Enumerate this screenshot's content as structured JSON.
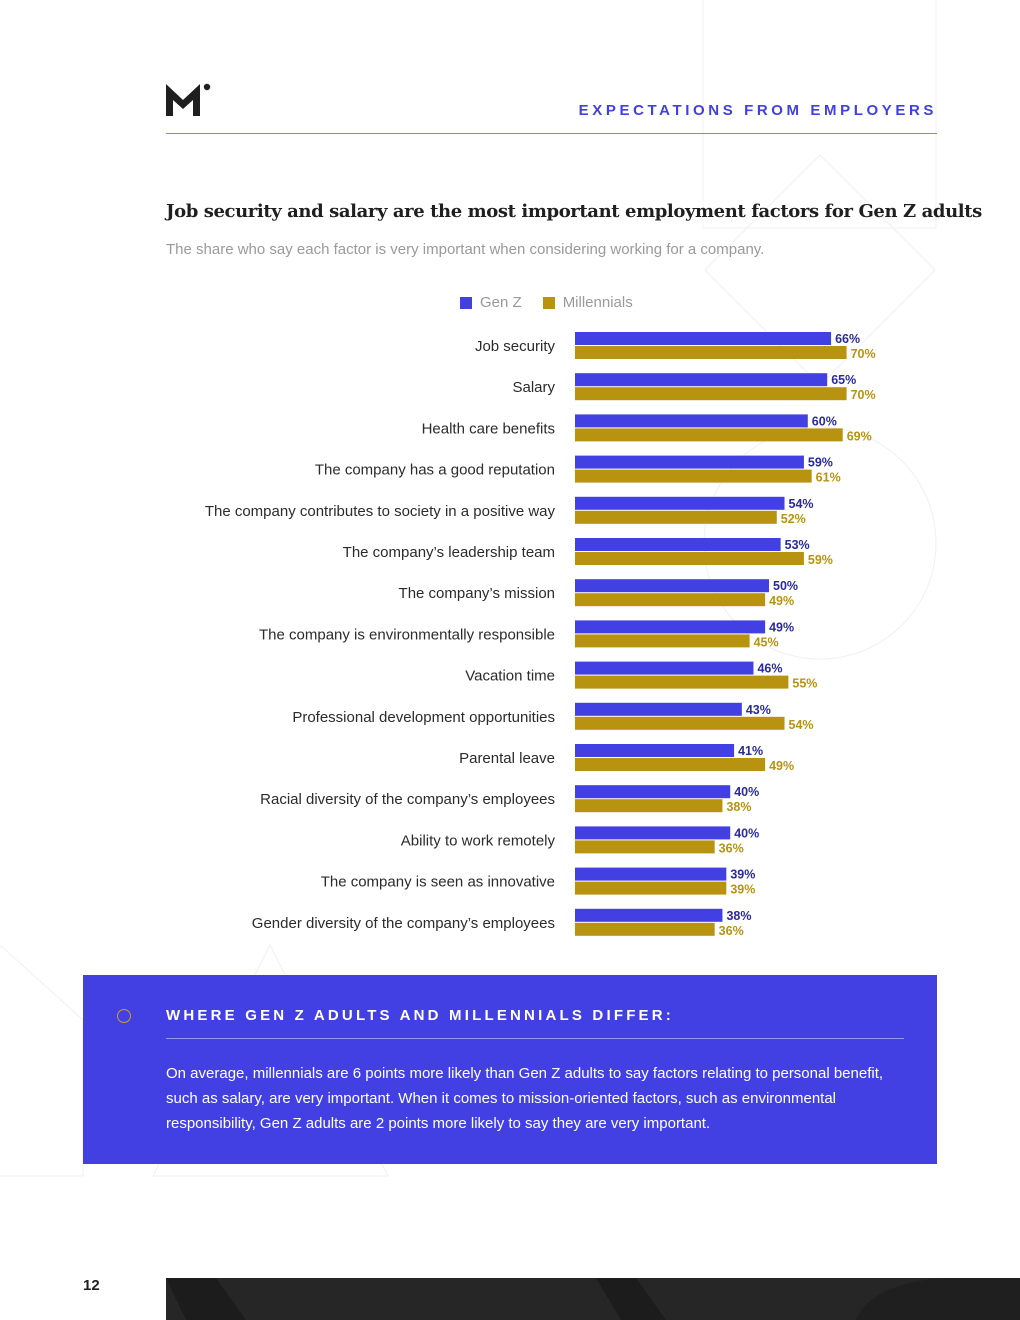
{
  "header": {
    "section_title": "EXPECTATIONS FROM EMPLOYERS"
  },
  "footer": {
    "page_number": "12"
  },
  "colors": {
    "gen_z": "#4240e3",
    "millennials": "#b8930f",
    "gen_z_label": "#2a2a9a",
    "millennials_label": "#b8930f"
  },
  "chart_data": {
    "type": "bar",
    "orientation": "horizontal",
    "title": "Job security and salary are the most important employment factors for Gen Z adults",
    "subtitle": "The share who say each factor is very important when considering working for a company.",
    "categories": [
      "Job security",
      "Salary",
      "Health care benefits",
      "The company has a good reputation",
      "The company contributes to society in a positive way",
      "The company’s leadership team",
      "The company’s mission",
      "The company is environmentally responsible",
      "Vacation time",
      "Professional development opportunities",
      "Parental leave",
      "Racial diversity of the company’s employees",
      "Ability to work remotely",
      "The company is seen as innovative",
      "Gender diversity of the company’s employees"
    ],
    "series": [
      {
        "name": "Gen Z",
        "values": [
          66,
          65,
          60,
          59,
          54,
          53,
          50,
          49,
          46,
          43,
          41,
          40,
          40,
          39,
          38
        ]
      },
      {
        "name": "Millennials",
        "values": [
          70,
          70,
          69,
          61,
          52,
          59,
          49,
          45,
          55,
          54,
          49,
          38,
          36,
          39,
          36
        ]
      }
    ],
    "value_suffix": "%",
    "xlim": [
      0,
      100
    ],
    "legend": "top",
    "grid": false
  },
  "callout": {
    "heading": "WHERE GEN Z ADULTS AND MILLENNIALS DIFFER:",
    "body": "On average, millennials are 6 points more likely than Gen Z adults to say factors relating to personal benefit, such as salary, are very important. When it comes to mission-oriented factors, such as environmental responsibility, Gen Z adults are 2 points more likely to say they are very important."
  }
}
